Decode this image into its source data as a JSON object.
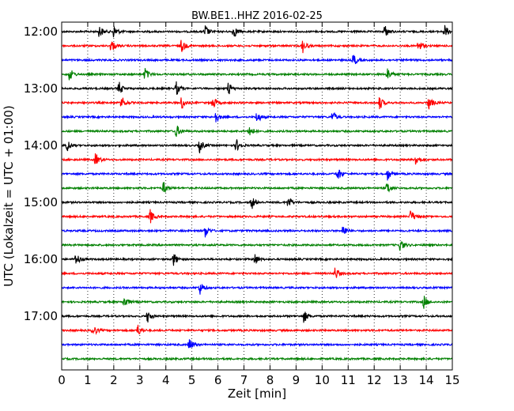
{
  "chart_data": {
    "type": "line",
    "title": "BW.BE1..HHZ 2016-02-25",
    "xlabel": "Zeit  [min]",
    "ylabel": "UTC (Lokalzeit = UTC + 01:00)",
    "xlim": [
      0,
      15
    ],
    "x_ticks": [
      "0",
      "1",
      "2",
      "3",
      "4",
      "5",
      "6",
      "7",
      "8",
      "9",
      "10",
      "11",
      "12",
      "13",
      "14",
      "15"
    ],
    "y_tick_labels": [
      "12:00",
      "13:00",
      "14:00",
      "15:00",
      "16:00",
      "17:00"
    ],
    "row_interval_minutes": 15,
    "grid": "vertical dotted",
    "row_colors": [
      "#000000",
      "#ff0000",
      "#0000ff",
      "#008000"
    ],
    "series": [
      {
        "start": "12:00",
        "events_min": [
          1.45,
          2.0,
          5.5,
          6.6,
          12.4,
          14.7
        ]
      },
      {
        "start": "12:15",
        "events_min": [
          1.9,
          4.6,
          9.25,
          13.7
        ]
      },
      {
        "start": "12:30",
        "events_min": [
          11.2
        ]
      },
      {
        "start": "12:45",
        "events_min": [
          0.3,
          3.2,
          12.5
        ]
      },
      {
        "start": "13:00",
        "events_min": [
          2.2,
          4.4,
          6.4
        ]
      },
      {
        "start": "13:15",
        "events_min": [
          2.3,
          4.6,
          5.8,
          12.2,
          14.1
        ]
      },
      {
        "start": "13:30",
        "events_min": [
          5.9,
          7.5,
          10.4
        ]
      },
      {
        "start": "13:45",
        "events_min": [
          4.4,
          7.2
        ]
      },
      {
        "start": "14:00",
        "events_min": [
          0.2,
          5.3,
          6.7
        ]
      },
      {
        "start": "14:15",
        "events_min": [
          1.3,
          13.6
        ]
      },
      {
        "start": "14:30",
        "events_min": [
          10.6,
          12.5
        ]
      },
      {
        "start": "14:45",
        "events_min": [
          3.9,
          12.5
        ]
      },
      {
        "start": "15:00",
        "events_min": [
          7.3,
          8.7
        ]
      },
      {
        "start": "15:15",
        "events_min": [
          3.4,
          13.4
        ]
      },
      {
        "start": "15:30",
        "events_min": [
          5.5,
          10.8
        ]
      },
      {
        "start": "15:45",
        "events_min": [
          13.0
        ]
      },
      {
        "start": "16:00",
        "events_min": [
          0.55,
          4.3,
          7.4
        ]
      },
      {
        "start": "16:15",
        "events_min": [
          10.5
        ]
      },
      {
        "start": "16:30",
        "events_min": [
          5.3
        ]
      },
      {
        "start": "16:45",
        "events_min": [
          2.4,
          13.9
        ]
      },
      {
        "start": "17:00",
        "events_min": [
          3.3,
          9.3
        ]
      },
      {
        "start": "17:15",
        "events_min": [
          1.2,
          2.9
        ]
      },
      {
        "start": "17:30",
        "events_min": [
          4.9
        ]
      },
      {
        "start": "17:45",
        "events_min": []
      }
    ]
  }
}
